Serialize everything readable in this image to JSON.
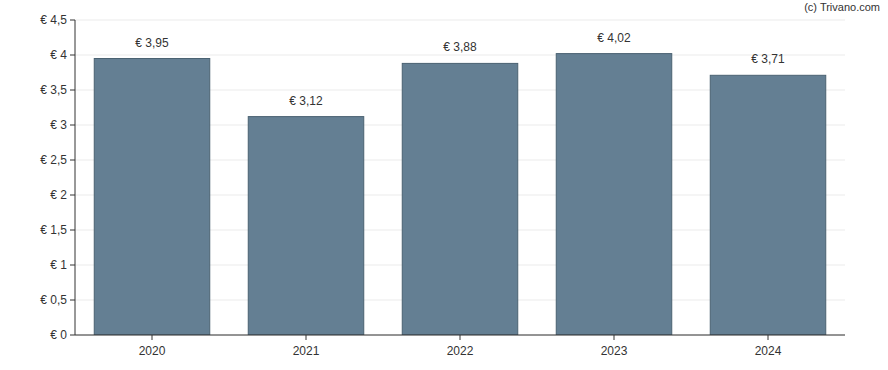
{
  "chart_data": {
    "type": "bar",
    "categories": [
      "2020",
      "2021",
      "2022",
      "2023",
      "2024"
    ],
    "values": [
      3.95,
      3.12,
      3.88,
      4.02,
      3.71
    ],
    "value_labels": [
      "€ 3,95",
      "€ 3,12",
      "€ 3,88",
      "€ 4,02",
      "€ 3,71"
    ],
    "color": "#647f93",
    "ylim": [
      0,
      4.5
    ],
    "yticks": [
      {
        "value": 0,
        "label": "€ 0"
      },
      {
        "value": 0.5,
        "label": "€ 0,5"
      },
      {
        "value": 1,
        "label": "€ 1"
      },
      {
        "value": 1.5,
        "label": "€ 1,5"
      },
      {
        "value": 2,
        "label": "€ 2"
      },
      {
        "value": 2.5,
        "label": "€ 2,5"
      },
      {
        "value": 3,
        "label": "€ 3"
      },
      {
        "value": 3.5,
        "label": "€ 3,5"
      },
      {
        "value": 4,
        "label": "€ 4"
      },
      {
        "value": 4.5,
        "label": "€ 4,5"
      }
    ],
    "grid": true,
    "data_labels": true,
    "annotations": [
      "(c) Trivano.com"
    ]
  }
}
